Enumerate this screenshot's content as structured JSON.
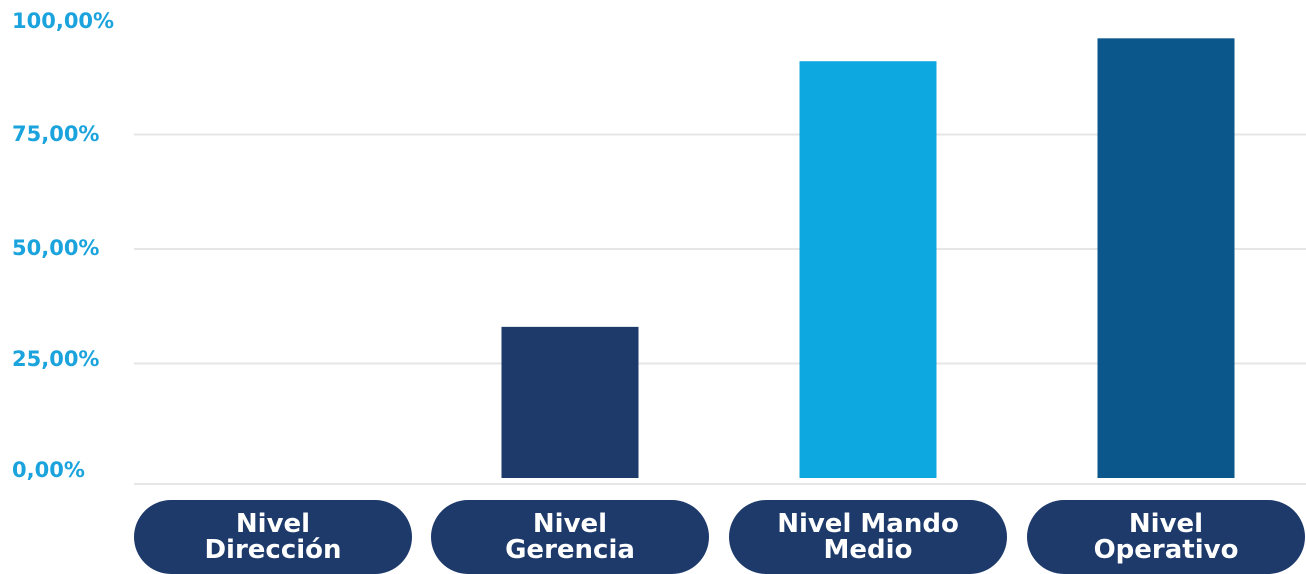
{
  "chart_data": {
    "type": "bar",
    "categories": [
      "Nivel\nDirección",
      "Nivel\nGerencia",
      "Nivel Mando\nMedio",
      "Nivel\nOperativo"
    ],
    "values": [
      0,
      33,
      91,
      96
    ],
    "bar_colors": [
      "#1d3a6b",
      "#1d3a6b",
      "#0ea8e0",
      "#0b568a"
    ],
    "category_pill_color": "#1d3a6b",
    "tick_color": "#1aa3dc",
    "y_ticks": [
      "0,00%",
      "25,00%",
      "50,00%",
      "75,00%",
      "100,00%"
    ],
    "y_tick_values": [
      0,
      25,
      50,
      75,
      100
    ],
    "ylim": [
      0,
      100
    ],
    "title": "",
    "xlabel": "",
    "ylabel": "",
    "grid": true
  }
}
